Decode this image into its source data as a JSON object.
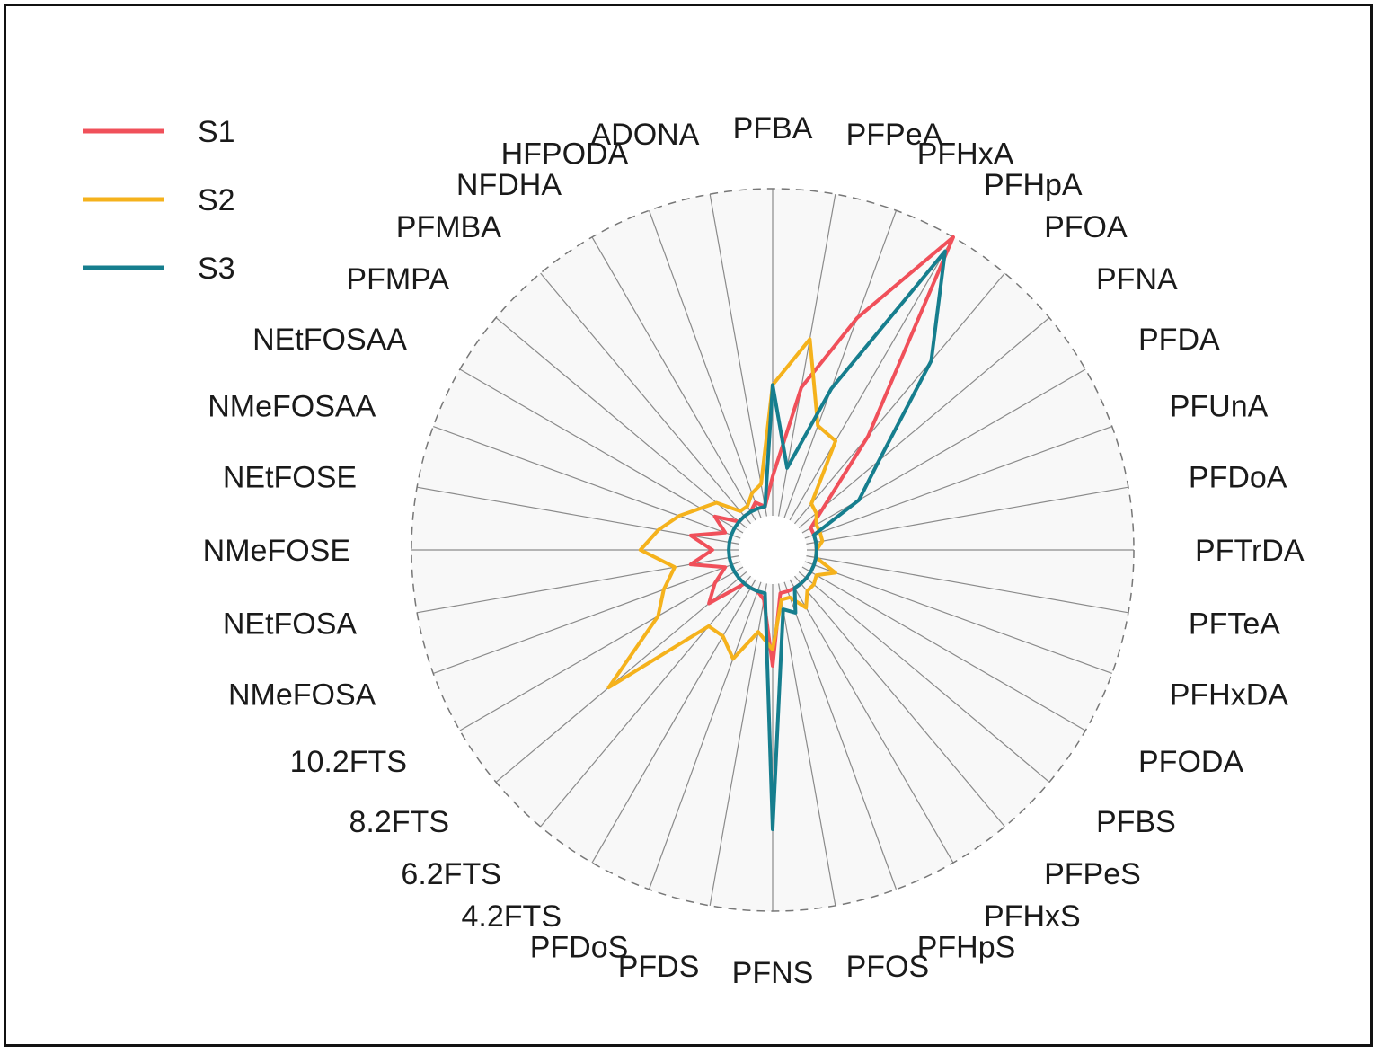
{
  "chart_data": {
    "type": "radar",
    "categories": [
      "PFBA",
      "PFPeA",
      "PFHxA",
      "PFHpA",
      "PFOA",
      "PFNA",
      "PFDA",
      "PFUnA",
      "PFDoA",
      "PFTrDA",
      "PFTeA",
      "PFHxDA",
      "PFODA",
      "PFBS",
      "PFPeS",
      "PFHxS",
      "PFHpS",
      "PFOS",
      "PFNS",
      "PFDS",
      "PFDoS",
      "4.2FTS",
      "6.2FTS",
      "8.2FTS",
      "10.2FTS",
      "NMeFOSA",
      "NEtFOSA",
      "NMeFOSE",
      "NEtFOSE",
      "NMeFOSAA",
      "NEtFOSAA",
      "PFMPA",
      "PFMBA",
      "NFDHA",
      "HFPODA",
      "ADONA"
    ],
    "series": [
      {
        "name": "S1",
        "color": "#f0505a",
        "values": [
          0.12,
          0.4,
          0.65,
          1.0,
          0.35,
          0.1,
          0.03,
          0.03,
          0.03,
          0.03,
          0.03,
          0.03,
          0.03,
          0.03,
          0.03,
          0.03,
          0.03,
          0.03,
          0.25,
          0.05,
          0.03,
          0.03,
          0.03,
          0.15,
          0.1,
          0.05,
          0.15,
          0.08,
          0.15,
          0.05,
          0.1,
          0.03,
          0.03,
          0.03,
          0.05,
          0.03
        ]
      },
      {
        "name": "S2",
        "color": "#f5b21c",
        "values": [
          0.4,
          0.55,
          0.3,
          0.28,
          0.08,
          0.07,
          0.05,
          0.05,
          0.05,
          0.03,
          0.03,
          0.1,
          0.05,
          0.06,
          0.06,
          0.1,
          0.05,
          0.05,
          0.2,
          0.15,
          0.25,
          0.2,
          0.2,
          0.55,
          0.3,
          0.25,
          0.2,
          0.3,
          0.25,
          0.2,
          0.15,
          0.12,
          0.05,
          0.05,
          0.08,
          0.1
        ]
      },
      {
        "name": "S3",
        "color": "#167e8e",
        "values": [
          0.4,
          0.15,
          0.42,
          0.95,
          0.65,
          0.32,
          0.2,
          0.03,
          0.03,
          0.03,
          0.03,
          0.03,
          0.03,
          0.03,
          0.03,
          0.03,
          0.1,
          0.08,
          0.75,
          0.03,
          0.03,
          0.03,
          0.03,
          0.03,
          0.03,
          0.03,
          0.03,
          0.03,
          0.03,
          0.03,
          0.03,
          0.03,
          0.03,
          0.03,
          0.03,
          0.03
        ]
      }
    ],
    "rlim": [
      0,
      1
    ],
    "grid": true,
    "legend": "top-left"
  }
}
